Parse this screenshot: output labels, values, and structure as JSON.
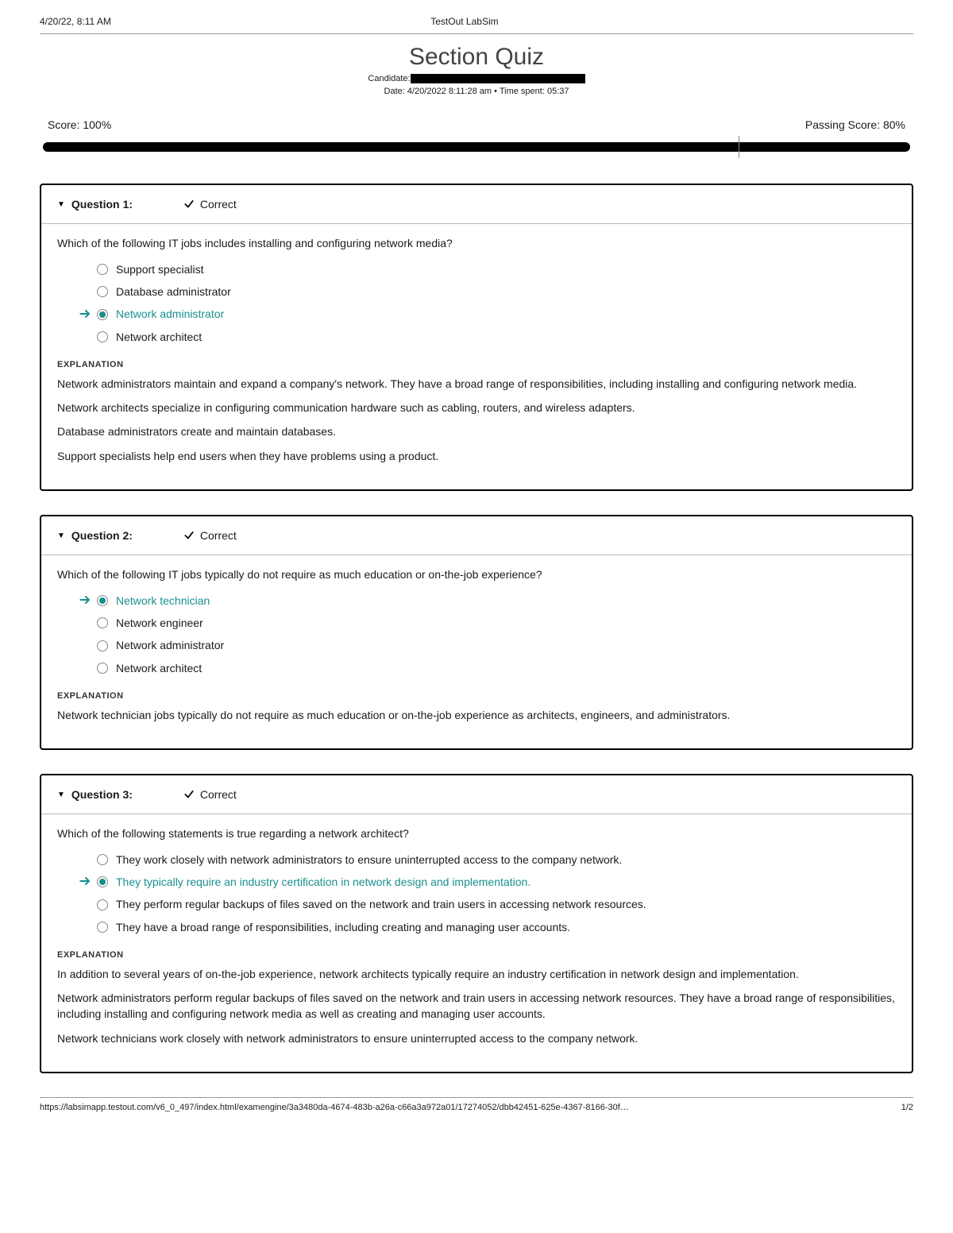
{
  "print_header": {
    "left": "4/20/22, 8:11 AM",
    "center": "TestOut LabSim"
  },
  "title": "Section Quiz",
  "meta": {
    "candidate_label": "Candidate:",
    "date_line": "Date: 4/20/2022 8:11:28 am • Time spent: 05:37"
  },
  "scores": {
    "score_label": "Score: 100%",
    "passing_label": "Passing Score: 80%",
    "score_pct": 100,
    "passing_pct": 80,
    "bar_color": "#000000",
    "pass_marker_color": "#888888"
  },
  "status_text": "Correct",
  "explanation_heading": "EXPLANATION",
  "colors": {
    "accent": "#1a8f8f",
    "border": "#000000",
    "text": "#1a1a1a"
  },
  "questions": [
    {
      "label": "Question 1:",
      "prompt": "Which of the following IT jobs includes installing and configuring network media?",
      "options": [
        {
          "text": "Support specialist",
          "correct": false
        },
        {
          "text": "Database administrator",
          "correct": false
        },
        {
          "text": "Network administrator",
          "correct": true
        },
        {
          "text": "Network architect",
          "correct": false
        }
      ],
      "explanation": [
        "Network administrators maintain and expand a company's network. They have a broad range of responsibilities, including installing and configuring network media.",
        "Network architects specialize in configuring communication hardware such as cabling, routers, and wireless adapters.",
        "Database administrators create and maintain databases.",
        "Support specialists help end users when they have problems using a product."
      ]
    },
    {
      "label": "Question 2:",
      "prompt": "Which of the following IT jobs typically do not require as much education or on-the-job experience?",
      "options": [
        {
          "text": "Network technician",
          "correct": true
        },
        {
          "text": "Network engineer",
          "correct": false
        },
        {
          "text": "Network administrator",
          "correct": false
        },
        {
          "text": "Network architect",
          "correct": false
        }
      ],
      "explanation": [
        "Network technician jobs typically do not require as much education or on-the-job experience as architects, engineers, and administrators."
      ]
    },
    {
      "label": "Question 3:",
      "prompt": "Which of the following statements is true regarding a network architect?",
      "options": [
        {
          "text": "They work closely with network administrators to ensure uninterrupted access to the company network.",
          "correct": false
        },
        {
          "text": "They typically require an industry certification in network design and implementation.",
          "correct": true
        },
        {
          "text": "They perform regular backups of files saved on the network and train users in accessing network resources.",
          "correct": false
        },
        {
          "text": "They have a broad range of responsibilities, including creating and managing user accounts.",
          "correct": false
        }
      ],
      "explanation": [
        "In addition to several years of on-the-job experience, network architects typically require an industry certification in network design and implementation.",
        "Network administrators perform regular backups of files saved on the network and train users in accessing network resources. They have a broad range of responsibilities, including installing and configuring network media as well as creating and managing user accounts.",
        "Network technicians work closely with network administrators to ensure uninterrupted access to the company network."
      ]
    }
  ],
  "footer": {
    "url": "https://labsimapp.testout.com/v6_0_497/index.html/examengine/3a3480da-4674-483b-a26a-c66a3a972a01/17274052/dbb42451-625e-4367-8166-30f…",
    "page": "1/2"
  }
}
